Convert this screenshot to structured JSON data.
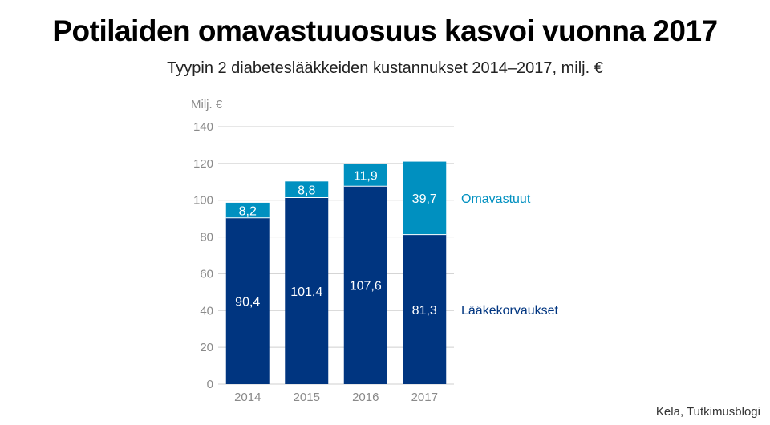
{
  "title": "Potilaiden omavastuuosuus kasvoi vuonna 2017",
  "subtitle": "Tyypin 2 diabeteslääkkeiden kustannukset 2014–2017, milj. €",
  "source": "Kela, Tutkimusblogi",
  "colors": {
    "laakekorvaukset": "#003580",
    "omavastuut": "#0090c0",
    "grid": "#cfcfcf"
  },
  "chart_data": {
    "type": "bar",
    "stacked": true,
    "categories": [
      "2014",
      "2015",
      "2016",
      "2017"
    ],
    "series": [
      {
        "name": "Lääkekorvaukset",
        "values": [
          90.4,
          101.4,
          107.6,
          81.3
        ],
        "labels": [
          "90,4",
          "101,4",
          "107,6",
          "81,3"
        ]
      },
      {
        "name": "Omavastuut",
        "values": [
          8.2,
          8.8,
          11.9,
          39.7
        ],
        "labels": [
          "8,2",
          "8,8",
          "11,9",
          "39,7"
        ]
      }
    ],
    "ylabel": "Milj. €",
    "ylim": [
      0,
      140
    ],
    "yticks": [
      0,
      20,
      40,
      60,
      80,
      100,
      120,
      140
    ],
    "grid": true,
    "legend": "right, labels beside 2017 bar"
  }
}
